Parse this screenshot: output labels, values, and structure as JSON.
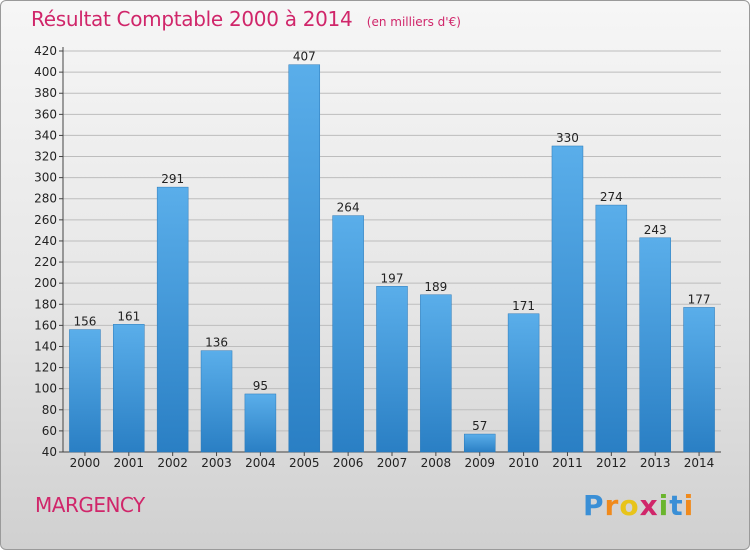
{
  "header": {
    "title": "Résultat Comptable 2000 à 2014",
    "unit": "(en milliers d'€)"
  },
  "footer": {
    "location": "MARGENCY",
    "brand": "Proxiti",
    "brand_letters": [
      "P",
      "r",
      "o",
      "x",
      "i",
      "t",
      "i"
    ],
    "brand_colors": [
      "#3a8fd6",
      "#f08a1c",
      "#e8c41a",
      "#d0266a",
      "#6ab52d",
      "#3a8fd6",
      "#f08a1c"
    ]
  },
  "colors": {
    "title": "#d0266a",
    "bar_top": "#5aaeea",
    "bar_bottom": "#2a7fc4",
    "grid": "#bdbdbd"
  },
  "chart_data": {
    "type": "bar",
    "title": "Résultat Comptable 2000 à 2014",
    "categories": [
      "2000",
      "2001",
      "2002",
      "2003",
      "2004",
      "2005",
      "2006",
      "2007",
      "2008",
      "2009",
      "2010",
      "2011",
      "2012",
      "2013",
      "2014"
    ],
    "values": [
      156,
      161,
      291,
      136,
      95,
      407,
      264,
      197,
      189,
      57,
      171,
      330,
      274,
      243,
      177
    ],
    "ylim": [
      40,
      420
    ],
    "yticks": [
      40,
      60,
      80,
      100,
      120,
      140,
      160,
      180,
      200,
      220,
      240,
      260,
      280,
      300,
      320,
      340,
      360,
      380,
      400,
      420
    ],
    "grid": true,
    "data_labels": true
  }
}
